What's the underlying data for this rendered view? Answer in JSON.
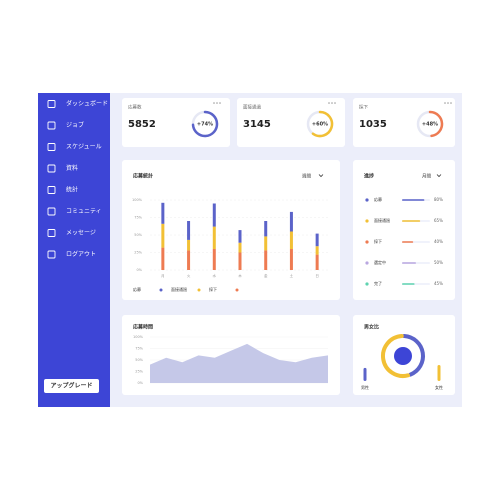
{
  "sidebar": {
    "menu": [
      "ダッシュボード",
      "ジョブ",
      "スケジュール",
      "資料",
      "統計",
      "コミュニティ",
      "メッセージ",
      "ログアウト"
    ],
    "button": "アップグレード"
  },
  "stats": [
    {
      "title": "応募数",
      "value": 5852,
      "change": {
        "value": 74,
        "label": "+74%"
      },
      "color": "#5b63c9"
    },
    {
      "title": "面接通過",
      "value": 3145,
      "change": {
        "value": 60,
        "label": "+60%"
      },
      "color": "#f2c035"
    },
    {
      "title": "採下",
      "value": 1035,
      "change": {
        "value": 48,
        "label": "+48%"
      },
      "color": "#ee7b52"
    }
  ],
  "chart_data": [
    {
      "type": "bar",
      "stacked": true,
      "title": "応募統計",
      "period": "週間",
      "categories": [
        "月",
        "火",
        "水",
        "木",
        "金",
        "土",
        "日"
      ],
      "series": [
        {
          "name": "応募",
          "color": "#5b63c9",
          "values": [
            30,
            27,
            33,
            18,
            22,
            28,
            18
          ]
        },
        {
          "name": "面接通過",
          "color": "#f2c035",
          "values": [
            34,
            15,
            32,
            14,
            20,
            25,
            12
          ]
        },
        {
          "name": "採下",
          "color": "#ee7b52",
          "values": [
            32,
            28,
            30,
            25,
            28,
            30,
            22
          ]
        }
      ],
      "ylim": [
        0,
        100
      ],
      "yticks": [
        {
          "value": 0,
          "label": "0%"
        },
        {
          "value": 25,
          "label": "25%"
        },
        {
          "value": 50,
          "label": "50%"
        },
        {
          "value": 75,
          "label": "75%"
        },
        {
          "value": 100,
          "label": "100%"
        }
      ],
      "grid": true
    },
    {
      "type": "hbar",
      "title": "進捗",
      "period": "月間",
      "categories": [
        "応募",
        "面接通過",
        "採下",
        "選定中",
        "完了"
      ],
      "values": [
        80,
        65,
        40,
        50,
        45
      ],
      "value_labels": [
        "80%",
        "65%",
        "40%",
        "50%",
        "45%"
      ],
      "colors": [
        "#5b63c9",
        "#f2c035",
        "#ee7b52",
        "#b9a7e0",
        "#5fd3b0"
      ],
      "xlim": [
        0,
        100
      ]
    },
    {
      "type": "area",
      "title": "応募時間",
      "categories": [
        null,
        null,
        null,
        null,
        null,
        null,
        null,
        null,
        null,
        null,
        null,
        null
      ],
      "values": [
        40,
        55,
        45,
        60,
        55,
        70,
        85,
        65,
        50,
        45,
        55,
        60
      ],
      "color": "#c5c8e8",
      "ylim": [
        0,
        100
      ],
      "yticks": [
        {
          "value": 0,
          "label": "0%"
        },
        {
          "value": 25,
          "label": "25%"
        },
        {
          "value": 50,
          "label": "50%"
        },
        {
          "value": 75,
          "label": "75%"
        },
        {
          "value": 100,
          "label": "100%"
        }
      ]
    },
    {
      "type": "pie",
      "title": "男女比",
      "categories": [
        "男性",
        "女性"
      ],
      "values": [
        45,
        55
      ],
      "colors": [
        "#5b63c9",
        "#f2c035"
      ]
    }
  ]
}
